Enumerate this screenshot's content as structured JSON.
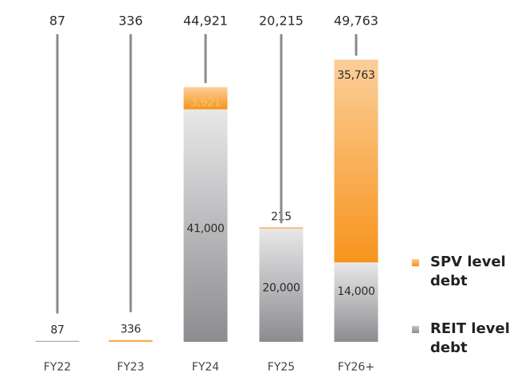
{
  "chart_data": {
    "type": "stacked_bar",
    "categories": [
      "FY22",
      "FY23",
      "FY24",
      "FY25",
      "FY26+"
    ],
    "series": [
      {
        "name": "REIT level debt",
        "color": "#8c8c90",
        "values": [
          87,
          null,
          41000,
          20000,
          14000
        ],
        "value_labels": [
          "87",
          null,
          "41,000",
          "20,000",
          "14,000"
        ]
      },
      {
        "name": "SPV level debt",
        "color": "#f7941d",
        "values": [
          null,
          336,
          3921,
          215,
          35763
        ],
        "value_labels": [
          null,
          "336",
          "3,921",
          "215",
          "35,763"
        ]
      }
    ],
    "totals": {
      "values": [
        87,
        336,
        44921,
        20215,
        49763
      ],
      "value_labels": [
        "87",
        "336",
        "44,921",
        "20,215",
        "49,763"
      ]
    },
    "legend": "right"
  }
}
